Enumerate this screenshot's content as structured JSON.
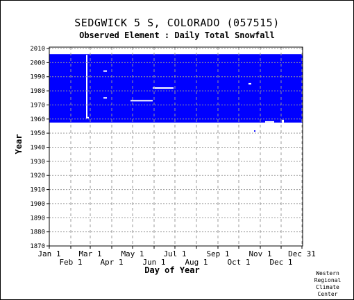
{
  "chart_data": {
    "type": "heatmap",
    "title": "SEDGWICK 5 S, COLORADO   (057515)",
    "subtitle": "Observed Element : Daily Total Snowfall",
    "xlabel": "Day of Year",
    "ylabel": "Year",
    "xlim": [
      1,
      366
    ],
    "ylim": [
      1870,
      2011
    ],
    "y_ticks": [
      1870,
      1880,
      1890,
      1900,
      1910,
      1920,
      1930,
      1940,
      1950,
      1960,
      1970,
      1980,
      1990,
      2000,
      2010
    ],
    "x_ticks_upper": [
      {
        "label": "Jan 1",
        "day": 1
      },
      {
        "label": "Mar 1",
        "day": 60
      },
      {
        "label": "May 1",
        "day": 121
      },
      {
        "label": "Jul 1",
        "day": 182
      },
      {
        "label": "Sep 1",
        "day": 244
      },
      {
        "label": "Nov 1",
        "day": 305
      },
      {
        "label": "Dec 31",
        "day": 365
      }
    ],
    "x_ticks_lower": [
      {
        "label": "Feb 1",
        "day": 32
      },
      {
        "label": "Apr 1",
        "day": 91
      },
      {
        "label": "Jun 1",
        "day": 152
      },
      {
        "label": "Aug 1",
        "day": 213
      },
      {
        "label": "Oct 1",
        "day": 274
      },
      {
        "label": "Dec 1",
        "day": 335
      }
    ],
    "grid": true,
    "coverage_color": "#0000ff",
    "coverage": {
      "day_start": 1,
      "day_end": 366,
      "year_start": 1957.5,
      "year_end": 2006
    },
    "gaps": [
      {
        "day_start": 54,
        "day_end": 58,
        "year_start": 1960.5,
        "year_end": 1961.5
      },
      {
        "day_start": 118,
        "day_end": 150,
        "year_start": 1972.5,
        "year_end": 1973.5
      },
      {
        "day_start": 150,
        "day_end": 180,
        "year_start": 1981.5,
        "year_end": 1982.5
      },
      {
        "day_start": 312,
        "day_end": 325,
        "year_start": 1957.5,
        "year_end": 1958.5
      },
      {
        "day_start": 288,
        "day_end": 292,
        "year_start": 1984.5,
        "year_end": 1985.5
      },
      {
        "day_start": 79,
        "day_end": 84,
        "year_start": 1974.5,
        "year_end": 1975.5
      },
      {
        "day_start": 79,
        "day_end": 84,
        "year_start": 1993.5,
        "year_end": 1994.5
      },
      {
        "day_start": 54,
        "day_end": 56,
        "year_start": 1960.5,
        "year_end": 2005.5
      },
      {
        "day_start": 336,
        "day_end": 339,
        "year_start": 1957.5,
        "year_end": 1959.5
      }
    ],
    "isolated_points": [
      {
        "day": 297,
        "year": 1951.5
      },
      {
        "day": 340,
        "year": 1992.5
      },
      {
        "day": 7,
        "year": 1997.5
      },
      {
        "day": 33,
        "year": 1995.5
      }
    ]
  },
  "credit": [
    "Western",
    "Regional",
    "Climate",
    "Center"
  ]
}
